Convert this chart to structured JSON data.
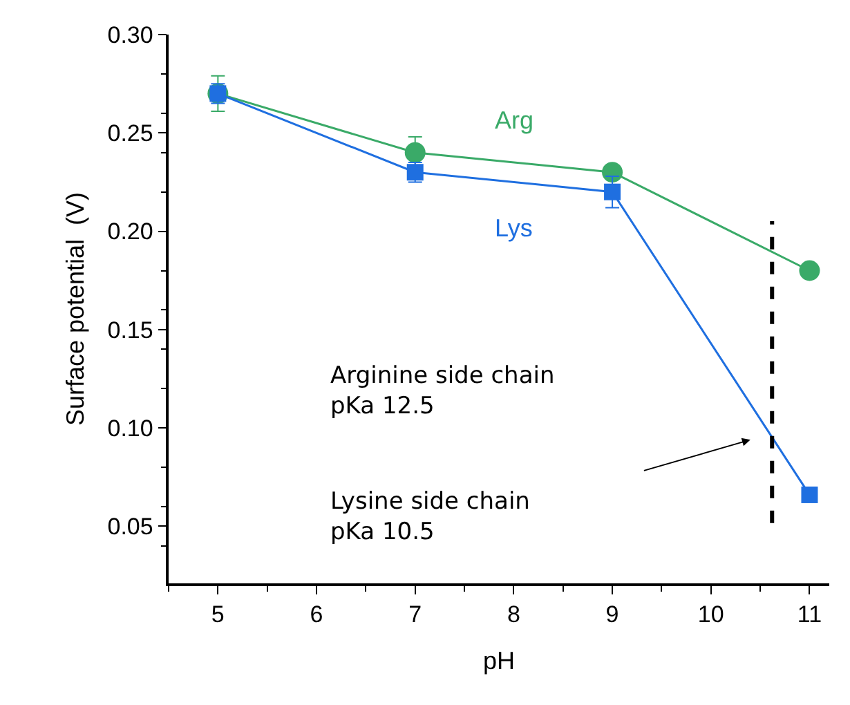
{
  "chart_data": {
    "type": "line",
    "xlabel": "pH",
    "ylabel": "Surface potential  (V)",
    "x": [
      5,
      7,
      9,
      11
    ],
    "series": [
      {
        "name": "Arg",
        "color": "#3aaa68",
        "values": [
          0.27,
          0.24,
          0.23,
          0.18
        ],
        "errors": [
          0.009,
          0.008,
          null,
          null
        ],
        "marker": "circle"
      },
      {
        "name": "Lys",
        "color": "#1f6fe0",
        "values": [
          0.27,
          0.23,
          0.22,
          0.066
        ],
        "errors": [
          0.005,
          0.005,
          0.008,
          null
        ],
        "marker": "square"
      }
    ],
    "xlim": [
      4.5,
      11.2
    ],
    "xticks": [
      5,
      6,
      7,
      8,
      9,
      10,
      11
    ],
    "ylim": [
      0.021,
      0.3
    ],
    "yticks": [
      {
        "value": 0.05,
        "label": "0.05"
      },
      {
        "value": 0.1,
        "label": "0.10"
      },
      {
        "value": 0.15,
        "label": "0.15"
      },
      {
        "value": 0.2,
        "label": "0.20"
      },
      {
        "value": 0.25,
        "label": "0.25"
      },
      {
        "value": 0.3,
        "label": "0.30"
      }
    ],
    "ref_lines": [
      {
        "axis": "x",
        "value": 10.62,
        "color": "#000000",
        "line_style": "dashed"
      }
    ],
    "annotations": [
      "Arginine side chain\npKa 12.5",
      "Lysine side chain\npKa 10.5"
    ],
    "grid": false,
    "legend": false,
    "line_style": "solid"
  }
}
